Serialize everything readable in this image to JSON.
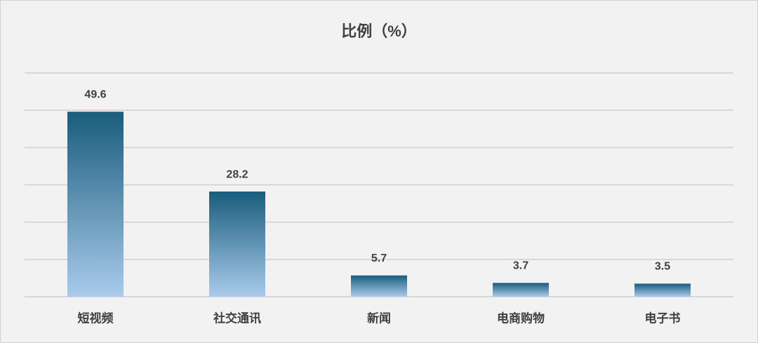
{
  "chart_data": {
    "type": "bar",
    "title": "比例（%）",
    "categories": [
      "短视频",
      "社交通讯",
      "新闻",
      "电商购物",
      "电子书"
    ],
    "values": [
      49.6,
      28.2,
      5.7,
      3.7,
      3.5
    ],
    "color": [
      "#1a5c7c",
      "#a9cbec"
    ],
    "ylim": [
      0,
      60
    ],
    "yticks": [
      0,
      10,
      20,
      30,
      40,
      50,
      60
    ],
    "grid": true
  }
}
